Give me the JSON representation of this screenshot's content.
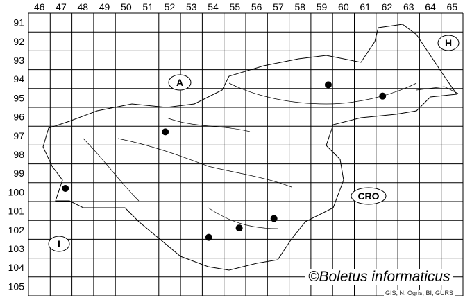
{
  "map": {
    "columns": [
      "46",
      "47",
      "48",
      "49",
      "50",
      "51",
      "52",
      "53",
      "54",
      "55",
      "56",
      "57",
      "58",
      "59",
      "60",
      "61",
      "62",
      "63",
      "64",
      "65"
    ],
    "rows": [
      "91",
      "92",
      "93",
      "94",
      "95",
      "96",
      "97",
      "98",
      "99",
      "100",
      "101",
      "102",
      "103",
      "104",
      "105"
    ],
    "country_labels": [
      {
        "code": "A"
      },
      {
        "code": "H"
      },
      {
        "code": "CRO"
      },
      {
        "code": "I"
      }
    ],
    "records": [
      {
        "col": "59",
        "row": "94"
      },
      {
        "col": "62",
        "row": "95"
      },
      {
        "col": "52",
        "row": "97"
      },
      {
        "col": "47",
        "row": "100"
      },
      {
        "col": "57",
        "row": "101"
      },
      {
        "col": "55",
        "row": "102"
      },
      {
        "col": "54",
        "row": "102"
      }
    ],
    "marker_color": "#000000"
  },
  "credit": "©Boletus informaticus",
  "source": "GIS, N. Ogris, BI, GURS"
}
